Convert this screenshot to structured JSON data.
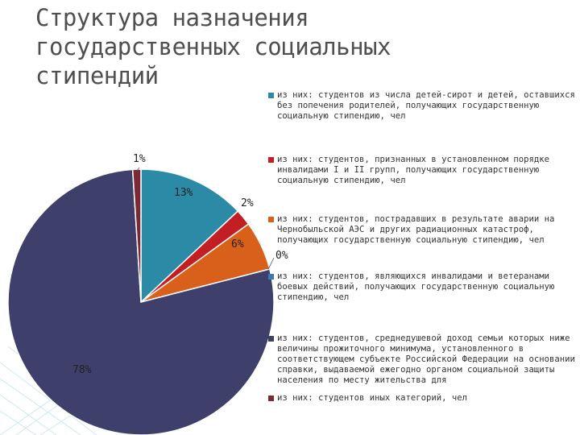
{
  "title": "Структура назначения государственных социальных стипендий",
  "chart_data": {
    "type": "pie",
    "colors": [
      "#2b8aa6",
      "#c41e25",
      "#d9601b",
      "#3d78b0",
      "#3f3f6b",
      "#7a2a35"
    ],
    "legend_position": "right",
    "slices": [
      {
        "label": "из них: студентов из числа детей-сирот и детей, оставшихся без попечения родителей, получающих государственную социальную стипендию, чел",
        "value": 13,
        "display": "13%"
      },
      {
        "label": "из них: студентов, признанных в установленном порядке инвалидами I и II групп, получающих государственную социальную стипендию, чел",
        "value": 2,
        "display": "2%"
      },
      {
        "label": "из них: студентов, пострадавших в результате аварии на Чернобыльской АЭС и других радиационных катастроф, получающих государственную социальную стипендию, чел",
        "value": 6,
        "display": "6%"
      },
      {
        "label": "из них: студентов, являющихся инвалидами и ветеранами боевых действий, получающих государственную социальную стипендию, чел",
        "value": 0,
        "display": "0%"
      },
      {
        "label": "из них: студентов, среднедушевой доход семьи которых ниже величины прожиточного минимума, установленного в соответствующем субъекте Российской Федерации на основании справки, выдаваемой ежегодно органом социальной защиты населения по месту жительства для",
        "value": 78,
        "display": "78%"
      },
      {
        "label": "из них: студентов иных категорий, чел",
        "value": 1,
        "display": "1%"
      }
    ]
  }
}
